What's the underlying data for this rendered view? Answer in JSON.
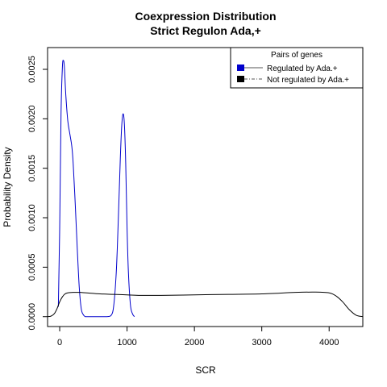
{
  "chart_data": {
    "type": "line",
    "title": "Coexpression Distribution",
    "subtitle": "Strict Regulon Ada,+",
    "xlabel": "SCR",
    "ylabel": "Probability Density",
    "xlim": [
      -180,
      4500
    ],
    "ylim": [
      -0.0001,
      0.00272
    ],
    "x_ticks": [
      0,
      1000,
      2000,
      3000,
      4000
    ],
    "x_tick_labels": [
      "0",
      "1000",
      "2000",
      "3000",
      "4000"
    ],
    "y_ticks": [
      0.0,
      0.0005,
      0.001,
      0.0015,
      0.002,
      0.0025
    ],
    "y_tick_labels": [
      "0.0000",
      "0.0005",
      "0.0010",
      "0.0015",
      "0.0020",
      "0.0025"
    ],
    "grid": false,
    "legend": {
      "title": "Pairs of genes",
      "placement": "top-right",
      "entries": [
        "Regulated by  Ada.+",
        "Not regulated by  Ada.+"
      ]
    },
    "series": [
      {
        "name": "Regulated by  Ada.+",
        "color": "#0000cc",
        "x": [
          -20,
          0,
          20,
          40,
          55,
          70,
          90,
          120,
          150,
          180,
          200,
          230,
          260,
          290,
          320,
          350,
          380,
          420,
          500,
          600,
          700,
          760,
          800,
          840,
          870,
          900,
          920,
          940,
          960,
          980,
          1000,
          1020,
          1050,
          1080,
          1110
        ],
        "y": [
          0.0001,
          0.0009,
          0.00205,
          0.00252,
          0.00259,
          0.00252,
          0.00225,
          0.00198,
          0.00185,
          0.00172,
          0.00155,
          0.00115,
          0.0007,
          0.0003,
          8e-05,
          2e-05,
          0.0,
          0.0,
          0.0,
          0.0,
          0.0,
          1e-05,
          0.0001,
          0.00045,
          0.00098,
          0.0016,
          0.00192,
          0.00205,
          0.00195,
          0.00155,
          0.0009,
          0.00045,
          0.00012,
          3e-05,
          0.0
        ]
      },
      {
        "name": "Not regulated by  Ada.+",
        "color": "#000000",
        "x": [
          -180,
          -130,
          -80,
          -40,
          0,
          40,
          80,
          120,
          200,
          300,
          400,
          600,
          800,
          1000,
          1200,
          1500,
          2000,
          2500,
          3000,
          3500,
          3800,
          4000,
          4100,
          4200,
          4300,
          4400,
          4500
        ],
        "y": [
          0.0,
          5e-06,
          3e-05,
          8e-05,
          0.00015,
          0.0002,
          0.00023,
          0.00024,
          0.000245,
          0.000245,
          0.00024,
          0.00023,
          0.000225,
          0.00022,
          0.000215,
          0.000215,
          0.00022,
          0.000225,
          0.00023,
          0.000245,
          0.000248,
          0.00024,
          0.00021,
          0.00015,
          7e-05,
          1.5e-05,
          0.0
        ]
      }
    ]
  }
}
